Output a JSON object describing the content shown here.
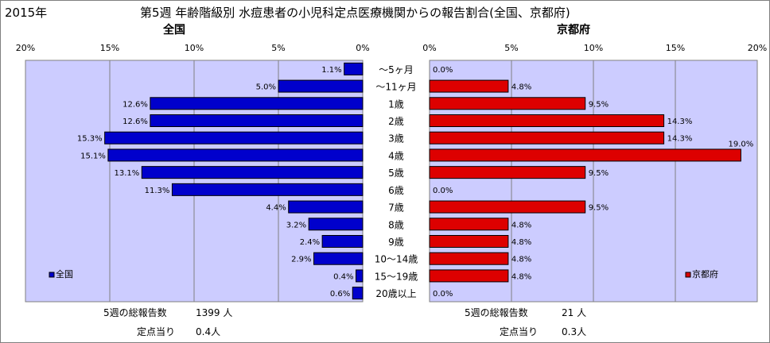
{
  "header": {
    "year": "2015年",
    "title": "第5週 年齢階級別 水痘患者の小児科定点医療機関からの報告割合(全国、京都府)"
  },
  "colors": {
    "plot_bg": "#ccccff",
    "national_bar": "#0000cc",
    "kyoto_bar": "#dd0000",
    "bar_border": "#000000",
    "gridline": "#808080"
  },
  "chart_data": [
    {
      "type": "bar",
      "orientation": "horizontal",
      "direction": "right-to-left",
      "title": "全国",
      "categories": [
        "～5ヶ月",
        "～11ヶ月",
        "1歳",
        "2歳",
        "3歳",
        "4歳",
        "5歳",
        "6歳",
        "7歳",
        "8歳",
        "9歳",
        "10～14歳",
        "15～19歳",
        "20歳以上"
      ],
      "series": [
        {
          "name": "全国",
          "values": [
            1.1,
            5.0,
            12.6,
            12.6,
            15.3,
            15.1,
            13.1,
            11.3,
            4.4,
            3.2,
            2.4,
            2.9,
            0.4,
            0.6
          ]
        }
      ],
      "data_labels": [
        "1.1%",
        "5.0%",
        "12.6%",
        "12.6%",
        "15.3%",
        "15.1%",
        "13.1%",
        "11.3%",
        "4.4%",
        "3.2%",
        "2.4%",
        "2.9%",
        "0.4%",
        "0.6%"
      ],
      "xlim": [
        0,
        20
      ],
      "ticks": [
        "20%",
        "15%",
        "10%",
        "5%",
        "0%"
      ],
      "grid": true,
      "legend": "bottom-left"
    },
    {
      "type": "bar",
      "orientation": "horizontal",
      "direction": "left-to-right",
      "title": "京都府",
      "categories": [
        "～5ヶ月",
        "～11ヶ月",
        "1歳",
        "2歳",
        "3歳",
        "4歳",
        "5歳",
        "6歳",
        "7歳",
        "8歳",
        "9歳",
        "10～14歳",
        "15～19歳",
        "20歳以上"
      ],
      "series": [
        {
          "name": "京都府",
          "values": [
            0.0,
            4.8,
            9.5,
            14.3,
            14.3,
            19.0,
            9.5,
            0.0,
            9.5,
            4.8,
            4.8,
            4.8,
            4.8,
            0.0
          ]
        }
      ],
      "data_labels": [
        "0.0%",
        "4.8%",
        "9.5%",
        "14.3%",
        "14.3%",
        "19.0%",
        "9.5%",
        "0.0%",
        "9.5%",
        "4.8%",
        "4.8%",
        "4.8%",
        "4.8%",
        "0.0%"
      ],
      "xlim": [
        0,
        20
      ],
      "ticks": [
        "0%",
        "5%",
        "10%",
        "15%",
        "20%"
      ],
      "grid": true,
      "legend": "bottom-right"
    }
  ],
  "footer": {
    "national": {
      "total_label": "5週の総報告数",
      "total_value": "1399 人",
      "per_label": "定点当り",
      "per_value": "0.4人"
    },
    "kyoto": {
      "total_label": "5週の総報告数",
      "total_value": "21 人",
      "per_label": "定点当り",
      "per_value": "0.3人"
    }
  }
}
